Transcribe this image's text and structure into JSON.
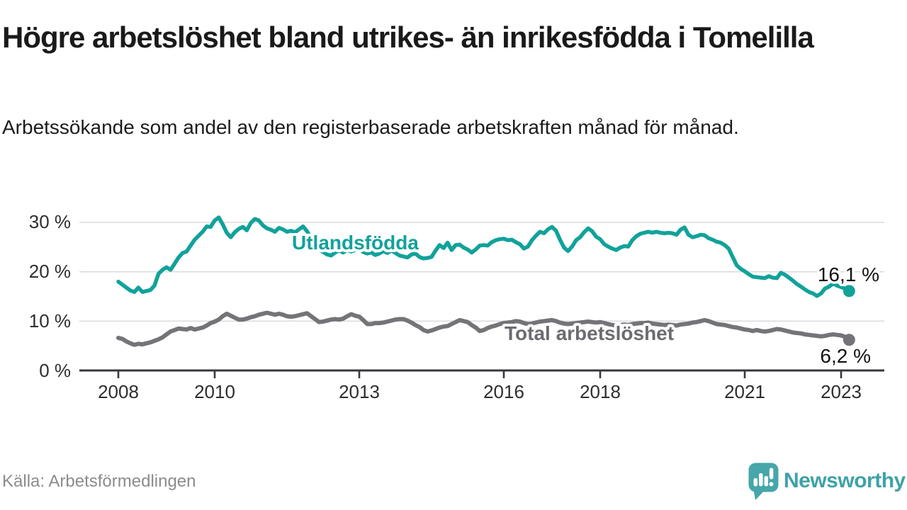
{
  "header": {
    "title": "Högre arbetslöshet bland utrikes- än inrikesfödda i Tomelilla",
    "subtitle": "Arbetssökande som andel av den registerbaserade arbetskraften månad för månad."
  },
  "footer": {
    "source": "Källa: Arbetsförmedlingen",
    "brand": "Newsworthy",
    "brand_color": "#3fa2a7"
  },
  "chart_data": {
    "type": "line",
    "unit": "%",
    "grid": true,
    "legend_position": "labels-on-chart",
    "x_axis": {
      "start_year": 2008,
      "points_per_year": 12,
      "range": [
        2008,
        2023.25
      ],
      "ticks": [
        {
          "value": 2008,
          "label": "2008"
        },
        {
          "value": 2010,
          "label": "2010"
        },
        {
          "value": 2013,
          "label": "2013"
        },
        {
          "value": 2016,
          "label": "2016"
        },
        {
          "value": 2018,
          "label": "2018"
        },
        {
          "value": 2021,
          "label": "2021"
        },
        {
          "value": 2023,
          "label": "2023"
        }
      ]
    },
    "y_axis": {
      "range": [
        0,
        31.5
      ],
      "ticks": [
        {
          "value": 0,
          "label": "0 %",
          "grid": false
        },
        {
          "value": 10,
          "label": "10 %",
          "grid": true
        },
        {
          "value": 20,
          "label": "20 %",
          "grid": true
        },
        {
          "value": 30,
          "label": "30 %",
          "grid": true
        }
      ]
    },
    "series": [
      {
        "name": "Utlandsfödda",
        "color": "#11a29a",
        "end_label": "16,1 %",
        "end_value": 16.1,
        "values": [
          18.0,
          17.4,
          16.8,
          16.2,
          15.9,
          16.8,
          15.9,
          16.1,
          16.3,
          17.2,
          19.6,
          20.4,
          20.9,
          20.4,
          21.6,
          22.9,
          23.8,
          24.1,
          25.3,
          26.5,
          27.3,
          28.1,
          29.2,
          29.1,
          30.4,
          31.0,
          29.6,
          27.9,
          27.0,
          28.0,
          28.7,
          29.1,
          28.4,
          29.9,
          30.7,
          30.4,
          29.4,
          28.8,
          28.5,
          28.1,
          28.9,
          28.6,
          28.1,
          28.3,
          28.0,
          28.6,
          29.2,
          28.2,
          26.8,
          25.6,
          24.6,
          24.0,
          23.5,
          23.3,
          23.9,
          24.3,
          23.9,
          24.4,
          24.1,
          24.4,
          24.6,
          24.0,
          23.7,
          23.9,
          23.4,
          23.7,
          24.2,
          23.8,
          24.3,
          23.8,
          23.3,
          23.1,
          22.9,
          23.5,
          23.7,
          23.0,
          22.7,
          22.8,
          23.0,
          24.3,
          25.4,
          24.8,
          25.9,
          24.4,
          25.4,
          25.5,
          24.9,
          24.5,
          23.9,
          24.5,
          25.3,
          25.4,
          25.3,
          26.0,
          26.4,
          26.6,
          26.7,
          26.4,
          26.5,
          26.0,
          25.6,
          24.7,
          25.1,
          26.4,
          27.3,
          28.1,
          27.8,
          28.6,
          29.1,
          28.3,
          26.5,
          24.9,
          24.2,
          25.1,
          26.4,
          27.0,
          28.0,
          28.8,
          28.2,
          27.1,
          26.6,
          25.6,
          25.1,
          24.7,
          24.4,
          24.9,
          25.2,
          25.1,
          26.4,
          27.2,
          27.7,
          27.9,
          28.1,
          27.9,
          28.1,
          27.9,
          27.8,
          27.9,
          27.8,
          27.5,
          28.5,
          29.0,
          27.5,
          27.0,
          27.2,
          27.5,
          27.4,
          26.8,
          26.5,
          26.1,
          25.9,
          25.4,
          24.7,
          23.0,
          21.3,
          20.6,
          20.1,
          19.5,
          19.0,
          18.9,
          18.8,
          18.7,
          19.1,
          18.8,
          18.7,
          19.8,
          19.4,
          18.8,
          18.2,
          17.5,
          17.0,
          16.4,
          15.9,
          15.6,
          15.1,
          15.6,
          16.6,
          17.0,
          17.6,
          17.2,
          16.9,
          16.6,
          16.1
        ]
      },
      {
        "name": "Total arbetslöshet",
        "color": "#747478",
        "label_color": "#6b6b70",
        "end_label": "6,2 %",
        "end_value": 6.2,
        "values": [
          6.6,
          6.4,
          5.9,
          5.5,
          5.2,
          5.4,
          5.3,
          5.5,
          5.7,
          6.0,
          6.3,
          6.7,
          7.3,
          7.9,
          8.2,
          8.5,
          8.4,
          8.3,
          8.6,
          8.3,
          8.5,
          8.7,
          9.1,
          9.6,
          9.9,
          10.3,
          11.0,
          11.5,
          11.1,
          10.7,
          10.3,
          10.3,
          10.5,
          10.8,
          11.0,
          11.3,
          11.5,
          11.7,
          11.5,
          11.3,
          11.5,
          11.3,
          11.0,
          10.9,
          11.0,
          11.2,
          11.4,
          11.6,
          11.0,
          10.4,
          9.8,
          9.9,
          10.1,
          10.3,
          10.4,
          10.3,
          10.5,
          11.0,
          11.4,
          11.1,
          10.9,
          10.2,
          9.4,
          9.4,
          9.6,
          9.6,
          9.7,
          9.9,
          10.1,
          10.3,
          10.4,
          10.4,
          10.1,
          9.7,
          9.2,
          8.8,
          8.2,
          7.9,
          8.1,
          8.4,
          8.7,
          8.9,
          9.0,
          9.4,
          9.8,
          10.2,
          10.0,
          9.8,
          9.2,
          8.7,
          8.0,
          8.2,
          8.6,
          8.9,
          9.1,
          9.4,
          9.6,
          9.7,
          9.8,
          10.0,
          9.9,
          9.6,
          9.4,
          9.5,
          9.7,
          9.9,
          10.0,
          10.1,
          10.2,
          10.0,
          9.7,
          9.5,
          9.4,
          9.5,
          9.6,
          9.7,
          9.8,
          9.9,
          9.8,
          9.7,
          9.8,
          9.6,
          9.4,
          9.2,
          9.1,
          9.2,
          9.3,
          9.2,
          9.4,
          9.5,
          9.6,
          9.6,
          9.7,
          9.5,
          9.4,
          9.3,
          9.2,
          9.3,
          9.2,
          9.1,
          9.3,
          9.4,
          9.5,
          9.7,
          9.8,
          10.0,
          10.2,
          10.0,
          9.7,
          9.4,
          9.3,
          9.2,
          9.0,
          8.8,
          8.7,
          8.5,
          8.3,
          8.2,
          8.0,
          8.2,
          8.0,
          7.9,
          8.0,
          8.2,
          8.4,
          8.3,
          8.1,
          7.9,
          7.7,
          7.6,
          7.5,
          7.3,
          7.2,
          7.1,
          7.0,
          6.9,
          7.0,
          7.2,
          7.3,
          7.2,
          7.1,
          6.8,
          6.2
        ]
      }
    ]
  }
}
